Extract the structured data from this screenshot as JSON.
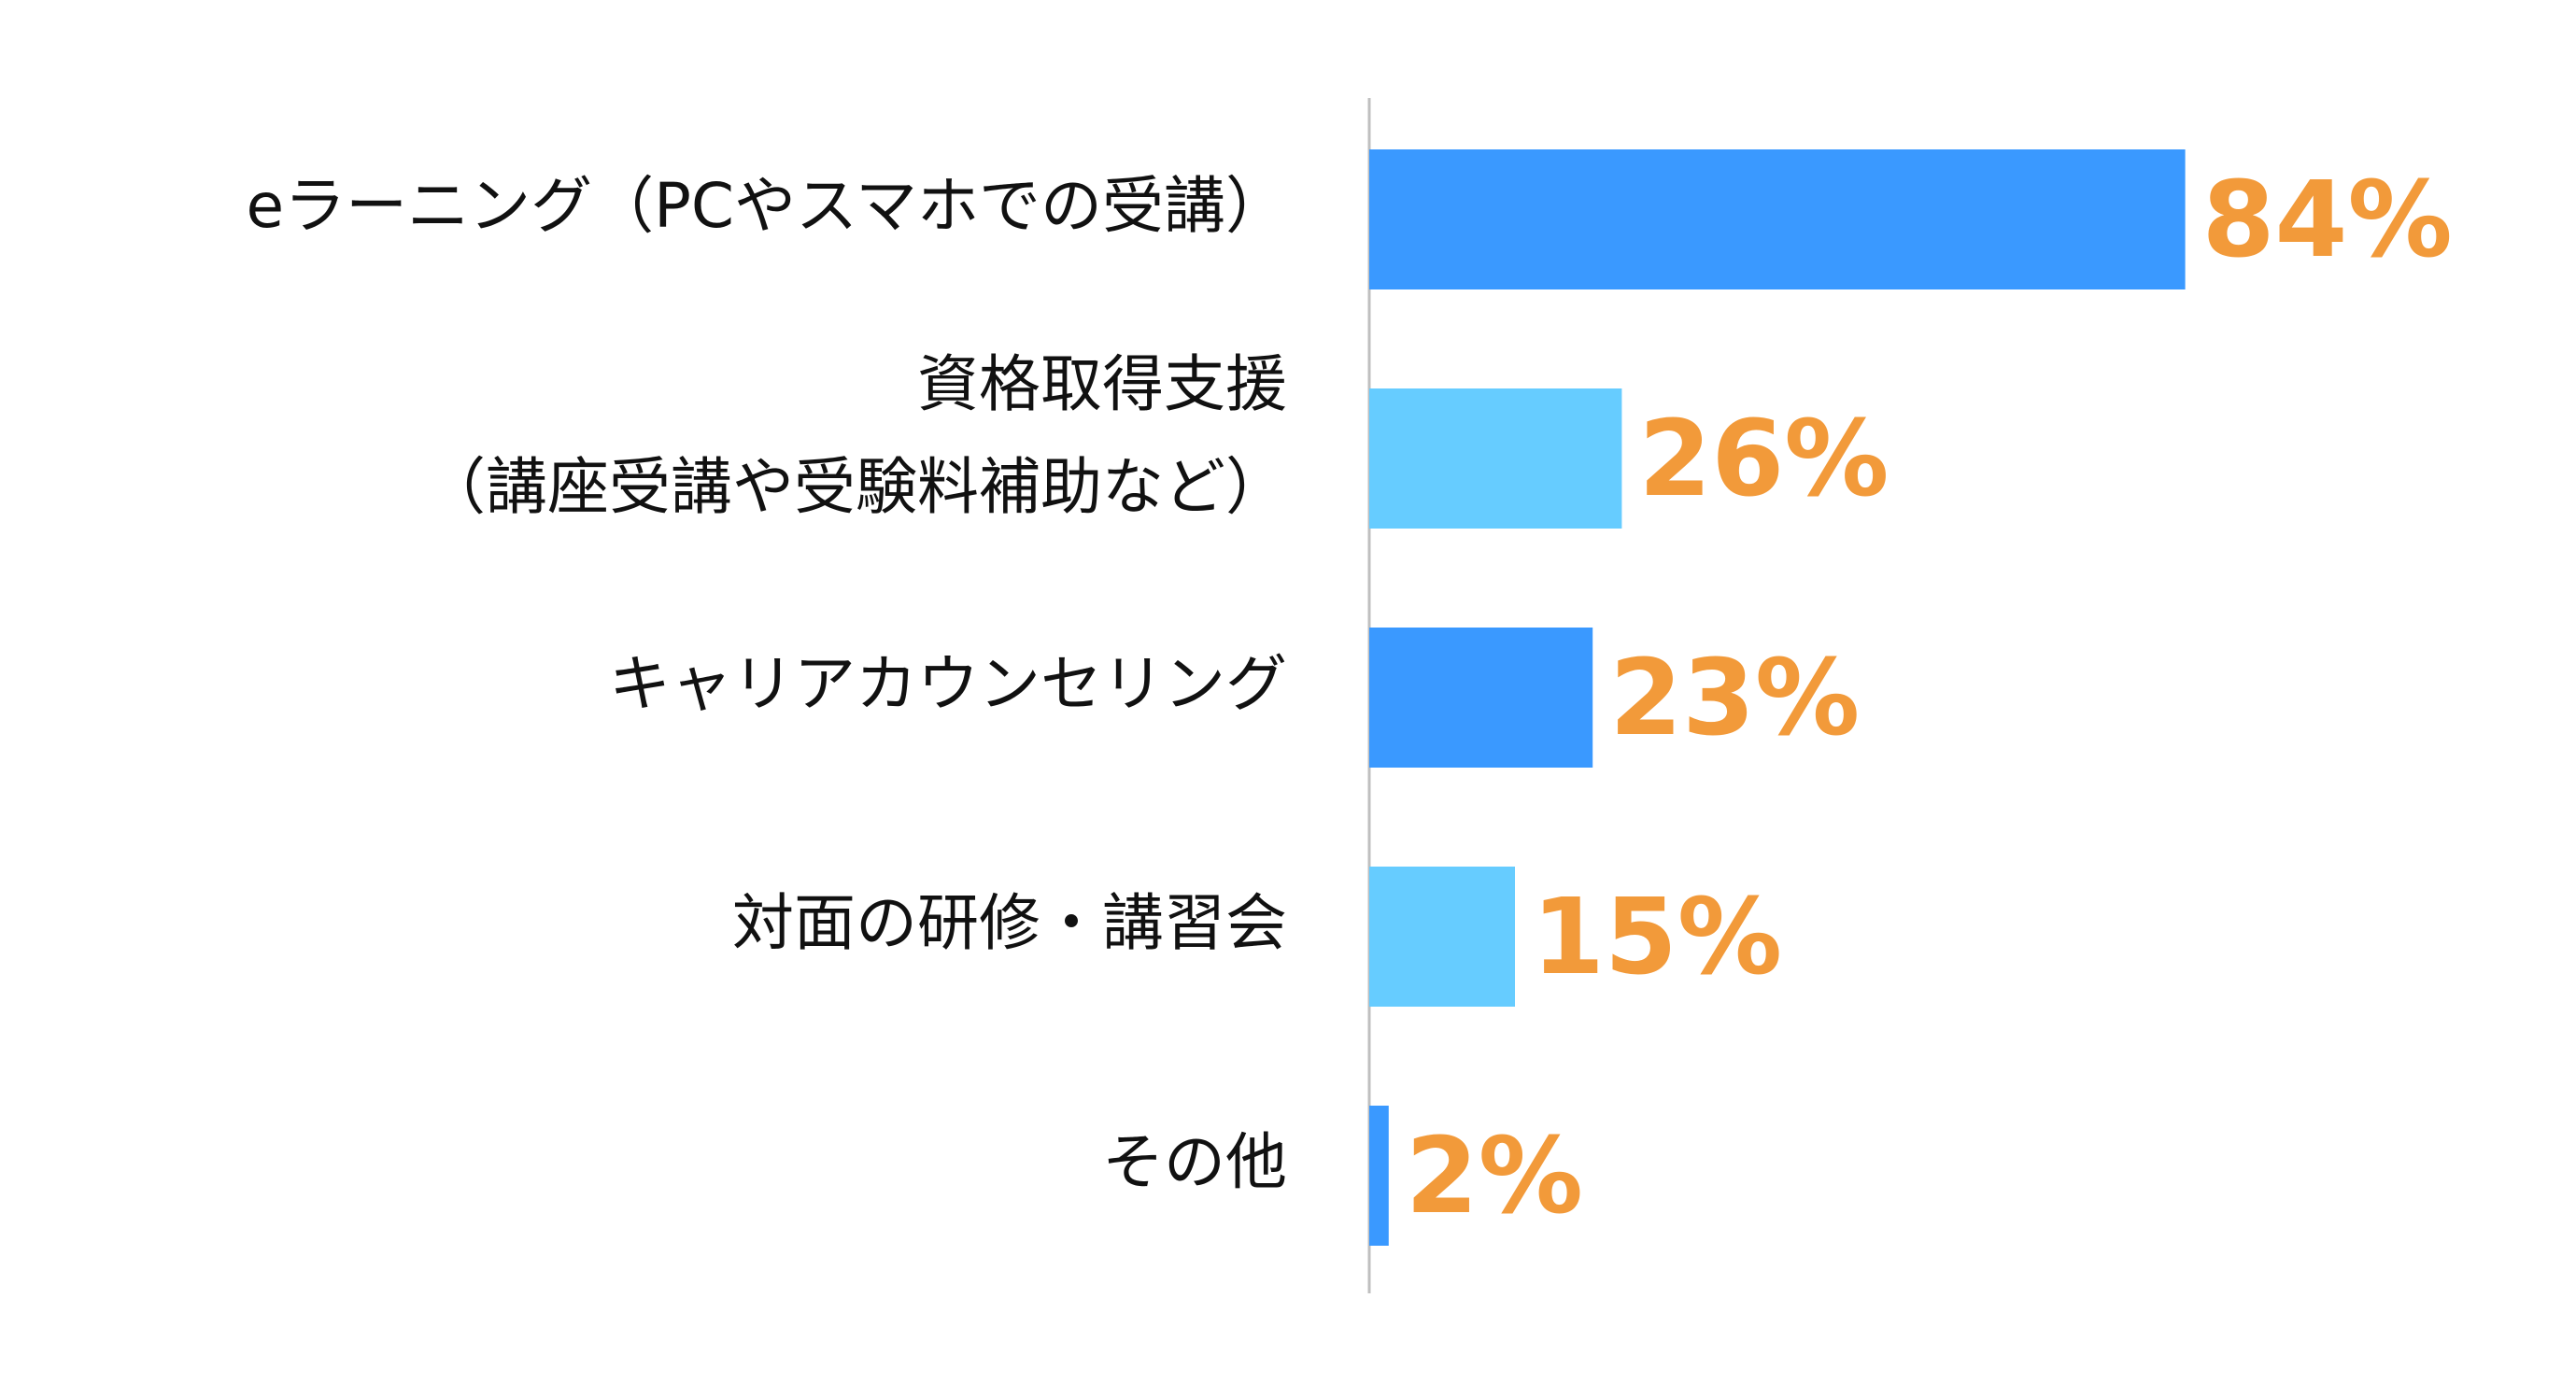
{
  "chart_data": {
    "type": "bar",
    "orientation": "horizontal",
    "categories": [
      [
        "eラーニング（PCやスマホでの受講）"
      ],
      [
        "資格取得支援",
        "（講座受講や受験料補助など）"
      ],
      [
        "キャリアカウンセリング"
      ],
      [
        "対面の研修・講習会"
      ],
      [
        "その他"
      ]
    ],
    "values": [
      84,
      26,
      23,
      15,
      2
    ],
    "value_labels": [
      "84%",
      "26%",
      "23%",
      "15%",
      "2%"
    ],
    "unit": "%",
    "xlim": [
      0,
      100
    ],
    "bar_colors": [
      "#3A99FF",
      "#66CCFF",
      "#3A99FF",
      "#66CCFF",
      "#3A99FF"
    ],
    "value_label_color": "#F29A3A",
    "category_label_color": "#111111",
    "axis_color": "#BFBFBF",
    "grid": false,
    "legend": "none"
  }
}
